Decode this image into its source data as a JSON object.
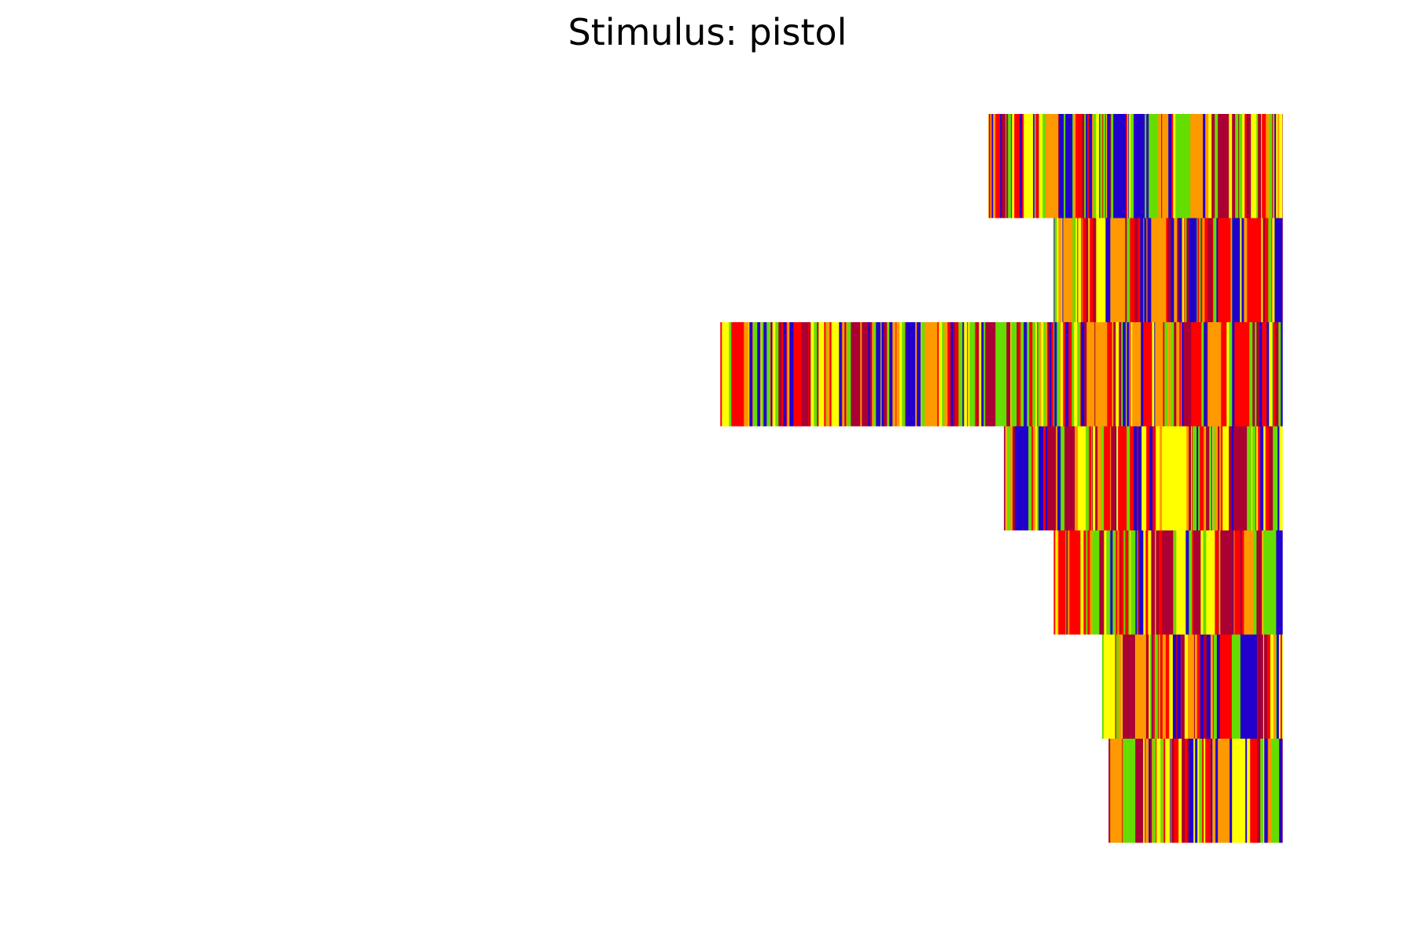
{
  "chart_data": {
    "type": "raster",
    "title": "Stimulus: pistol",
    "xlabel": "",
    "ylabel": "",
    "axes_visible": false,
    "grid": false,
    "legend": "none",
    "x_range": [
      0,
      1
    ],
    "row_order": "top-to-bottom",
    "palette": [
      "#ff0000",
      "#ffff00",
      "#ff9900",
      "#2200cc",
      "#66dd00",
      "#aa0033"
    ],
    "rows": [
      {
        "start": 0.756,
        "end": 0.981,
        "seed": 11
      },
      {
        "start": 0.806,
        "end": 0.981,
        "seed": 23
      },
      {
        "start": 0.551,
        "end": 0.981,
        "seed": 37
      },
      {
        "start": 0.768,
        "end": 0.981,
        "seed": 41
      },
      {
        "start": 0.806,
        "end": 0.981,
        "seed": 53
      },
      {
        "start": 0.843,
        "end": 0.981,
        "seed": 67
      },
      {
        "start": 0.848,
        "end": 0.981,
        "seed": 79
      }
    ]
  }
}
